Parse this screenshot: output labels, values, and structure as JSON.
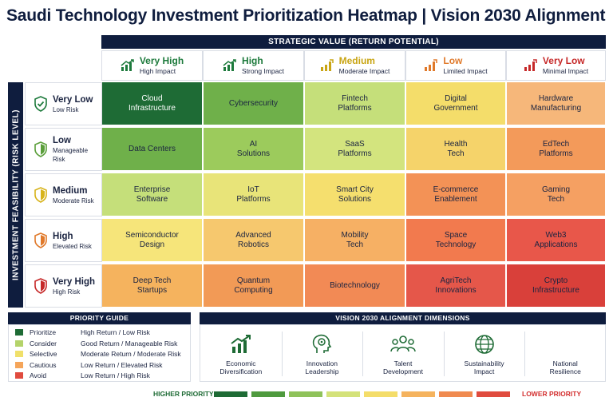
{
  "title": "Saudi Technology Investment Prioritization Heatmap | Vision 2030 Alignment",
  "columns_banner": "STRATEGIC VALUE (RETURN POTENTIAL)",
  "rows_banner": "INVESTMENT FEASIBILITY (RISK LEVEL)",
  "columns": [
    {
      "label": "Very High",
      "sub": "High Impact",
      "color": "#1d7a3c",
      "icon": "bar-chart-up-icon"
    },
    {
      "label": "High",
      "sub": "Strong Impact",
      "color": "#1d7a3c",
      "icon": "bar-chart-up-icon"
    },
    {
      "label": "Medium",
      "sub": "Moderate Impact",
      "color": "#c9a514",
      "icon": "bar-chart-icon"
    },
    {
      "label": "Low",
      "sub": "Limited Impact",
      "color": "#e0792a",
      "icon": "bar-chart-icon"
    },
    {
      "label": "Very Low",
      "sub": "Minimal Impact",
      "color": "#c62828",
      "icon": "bar-chart-icon"
    }
  ],
  "rows": [
    {
      "label": "Very Low",
      "sub": "Low Risk",
      "color": "#1d7a3c",
      "icon": "shield-check-icon"
    },
    {
      "label": "Low",
      "sub": "Manageable Risk",
      "color": "#5a9e3a",
      "icon": "shield-half-icon"
    },
    {
      "label": "Medium",
      "sub": "Moderate Risk",
      "color": "#d7b31a",
      "icon": "shield-half-icon"
    },
    {
      "label": "High",
      "sub": "Elevated Risk",
      "color": "#e0792a",
      "icon": "shield-half-icon"
    },
    {
      "label": "Very High",
      "sub": "High Risk",
      "color": "#c62828",
      "icon": "shield-half-icon"
    }
  ],
  "cells": [
    [
      {
        "text": "Cloud\nInfrastructure",
        "color": "#1e6b35"
      },
      {
        "text": "Cybersecurity",
        "color": "#6fb04a"
      },
      {
        "text": "Fintech\nPlatforms",
        "color": "#c5df7a"
      },
      {
        "text": "Digital\nGovernment",
        "color": "#f4dd6a"
      },
      {
        "text": "Hardware\nManufacturing",
        "color": "#f6b77a"
      }
    ],
    [
      {
        "text": "Data Centers",
        "color": "#6fb04a"
      },
      {
        "text": "AI\nSolutions",
        "color": "#9ccb5c"
      },
      {
        "text": "SaaS\nPlatforms",
        "color": "#d3e47e"
      },
      {
        "text": "Health\nTech",
        "color": "#f5d36a"
      },
      {
        "text": "EdTech\nPlatforms",
        "color": "#f39a5a"
      }
    ],
    [
      {
        "text": "Enterprise\nSoftware",
        "color": "#c5df7a"
      },
      {
        "text": "IoT\nPlatforms",
        "color": "#e8e479"
      },
      {
        "text": "Smart City\nSolutions",
        "color": "#f5df6e"
      },
      {
        "text": "E-commerce\nEnablement",
        "color": "#f39256"
      },
      {
        "text": "Gaming\nTech",
        "color": "#f5a062"
      }
    ],
    [
      {
        "text": "Semiconductor\nDesign",
        "color": "#f6e57a"
      },
      {
        "text": "Advanced\nRobotics",
        "color": "#f6c86e"
      },
      {
        "text": "Mobility\nTech",
        "color": "#f6b064"
      },
      {
        "text": "Space\nTechnology",
        "color": "#f27a4e"
      },
      {
        "text": "Web3\nApplications",
        "color": "#e8574a"
      }
    ],
    [
      {
        "text": "Deep Tech\nStartups",
        "color": "#f5b35e"
      },
      {
        "text": "Quantum\nComputing",
        "color": "#f29a56"
      },
      {
        "text": "Biotechnology",
        "color": "#f28a55"
      },
      {
        "text": "AgriTech\nInnovations",
        "color": "#e5574a"
      },
      {
        "text": "Crypto\nInfrastructure",
        "color": "#d9403a"
      }
    ]
  ],
  "guide": {
    "title": "PRIORITY GUIDE",
    "items": [
      {
        "label": "Prioritize",
        "desc": "High Return / Low Risk",
        "color": "#1e6b35"
      },
      {
        "label": "Consider",
        "desc": "Good Return / Manageable Risk",
        "color": "#b4d36a"
      },
      {
        "label": "Selective",
        "desc": "Moderate Return / Moderate Risk",
        "color": "#f0e06a"
      },
      {
        "label": "Cautious",
        "desc": "Low Return / Elevated Risk",
        "color": "#f5a55a"
      },
      {
        "label": "Avoid",
        "desc": "Low Return / High Risk",
        "color": "#e04b3e"
      }
    ]
  },
  "dimensions": {
    "title": "VISION 2030 ALIGNMENT DIMENSIONS",
    "items": [
      {
        "line1": "Economic",
        "line2": "Diversification",
        "icon": "growth-chart-icon"
      },
      {
        "line1": "Innovation",
        "line2": "Leadership",
        "icon": "brain-head-icon"
      },
      {
        "line1": "Talent",
        "line2": "Development",
        "icon": "people-group-icon"
      },
      {
        "line1": "Sustainability",
        "line2": "Impact",
        "icon": "globe-leaf-icon"
      },
      {
        "line1": "National",
        "line2": "Resilience",
        "icon": "shield-check-icon"
      }
    ]
  },
  "scale": {
    "high_label": "HIGHER PRIORITY",
    "low_label": "LOWER PRIORITY",
    "high_color": "#1e6b35",
    "low_color": "#d32f2f",
    "colors": [
      "#1e6b35",
      "#4f9a3e",
      "#8fc25a",
      "#d4e27a",
      "#f4dd6a",
      "#f5b35e",
      "#f08a50",
      "#e04b3e"
    ]
  }
}
